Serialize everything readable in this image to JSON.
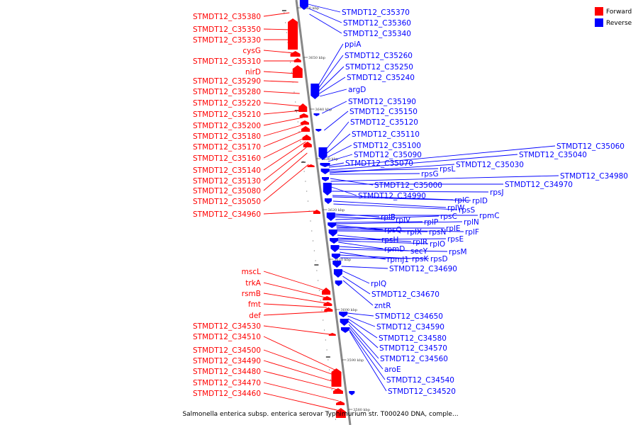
{
  "colors": {
    "forward": "#ff0000",
    "reverse": "#0000ff",
    "backbone": "#888888"
  },
  "legend": {
    "forward": {
      "label": "Forward",
      "color": "#ff0000"
    },
    "reverse": {
      "label": "Reverse",
      "color": "#0000ff"
    }
  },
  "caption": "Salmonella enterica subsp. enterica serovar Typhimurium str. T000240 DNA, comple...",
  "ticks": [
    "3660 kbp",
    "3650 kbp",
    "3640 kbp",
    "3630 kbp",
    "3620 kbp",
    "3610 kbp",
    "3600 kbp",
    "3590 kbp",
    "3580 kbp"
  ],
  "forward_genes": [
    "STMDT12_C35380",
    "STMDT12_C35350",
    "STMDT12_C35330",
    "cysG",
    "STMDT12_C35310",
    "nirD",
    "STMDT12_C35290",
    "STMDT12_C35280",
    "STMDT12_C35220",
    "STMDT12_C35210",
    "STMDT12_C35200",
    "STMDT12_C35180",
    "STMDT12_C35170",
    "STMDT12_C35160",
    "STMDT12_C35140",
    "STMDT12_C35130",
    "STMDT12_C35080",
    "STMDT12_C35050",
    "STMDT12_C34960",
    "mscL",
    "trkA",
    "rsmB",
    "fmt",
    "def",
    "STMDT12_C34530",
    "STMDT12_C34510",
    "STMDT12_C34500",
    "STMDT12_C34490",
    "STMDT12_C34480",
    "STMDT12_C34470",
    "STMDT12_C34460"
  ],
  "reverse_genes": [
    "STMDT12_C35370",
    "STMDT12_C35360",
    "STMDT12_C35340",
    "ppiA",
    "STMDT12_C35260",
    "STMDT12_C35250",
    "STMDT12_C35240",
    "argD",
    "STMDT12_C35190",
    "STMDT12_C35150",
    "STMDT12_C35120",
    "STMDT12_C35110",
    "STMDT12_C35100",
    "STMDT12_C35090",
    "STMDT12_C35070",
    "STMDT12_C35060",
    "STMDT12_C35040",
    "rpsL",
    "rpsG",
    "STMDT12_C35030",
    "STMDT12_C35000",
    "STMDT12_C34980",
    "STMDT12_C34970",
    "STMDT12_C34990",
    "rpsJ",
    "rplC",
    "rplD",
    "rplW",
    "rpsS",
    "rplB",
    "rplV",
    "rpsC",
    "rpmC",
    "rplP",
    "rplN",
    "rpsQ",
    "rplX",
    "rplE",
    "rplF",
    "rpsN",
    "rpsH",
    "rplR",
    "rpsE",
    "rpmD",
    "rplO",
    "secY",
    "rpsM",
    "rpmJ1",
    "rpsK",
    "rpsD",
    "STMDT12_C34690",
    "rplQ",
    "STMDT12_C34670",
    "zntR",
    "STMDT12_C34650",
    "STMDT12_C34590",
    "STMDT12_C34580",
    "STMDT12_C34570",
    "STMDT12_C34560",
    "aroE",
    "STMDT12_C34540",
    "STMDT12_C34520"
  ]
}
